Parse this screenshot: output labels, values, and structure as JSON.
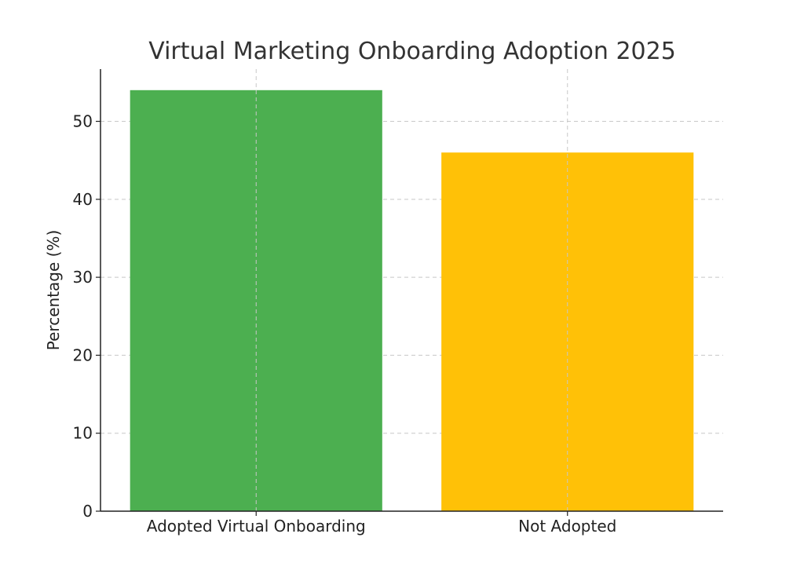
{
  "chart_data": {
    "type": "bar",
    "title": "Virtual Marketing Onboarding Adoption 2025",
    "xlabel": "",
    "ylabel": "Percentage (%)",
    "categories": [
      "Adopted Virtual Onboarding",
      "Not Adopted"
    ],
    "values": [
      54,
      46
    ],
    "colors": [
      "#4caf50",
      "#ffc107"
    ],
    "ylim": [
      0,
      56.7
    ],
    "yticks": [
      0,
      10,
      20,
      30,
      40,
      50
    ],
    "grid": true,
    "legend": "none"
  }
}
